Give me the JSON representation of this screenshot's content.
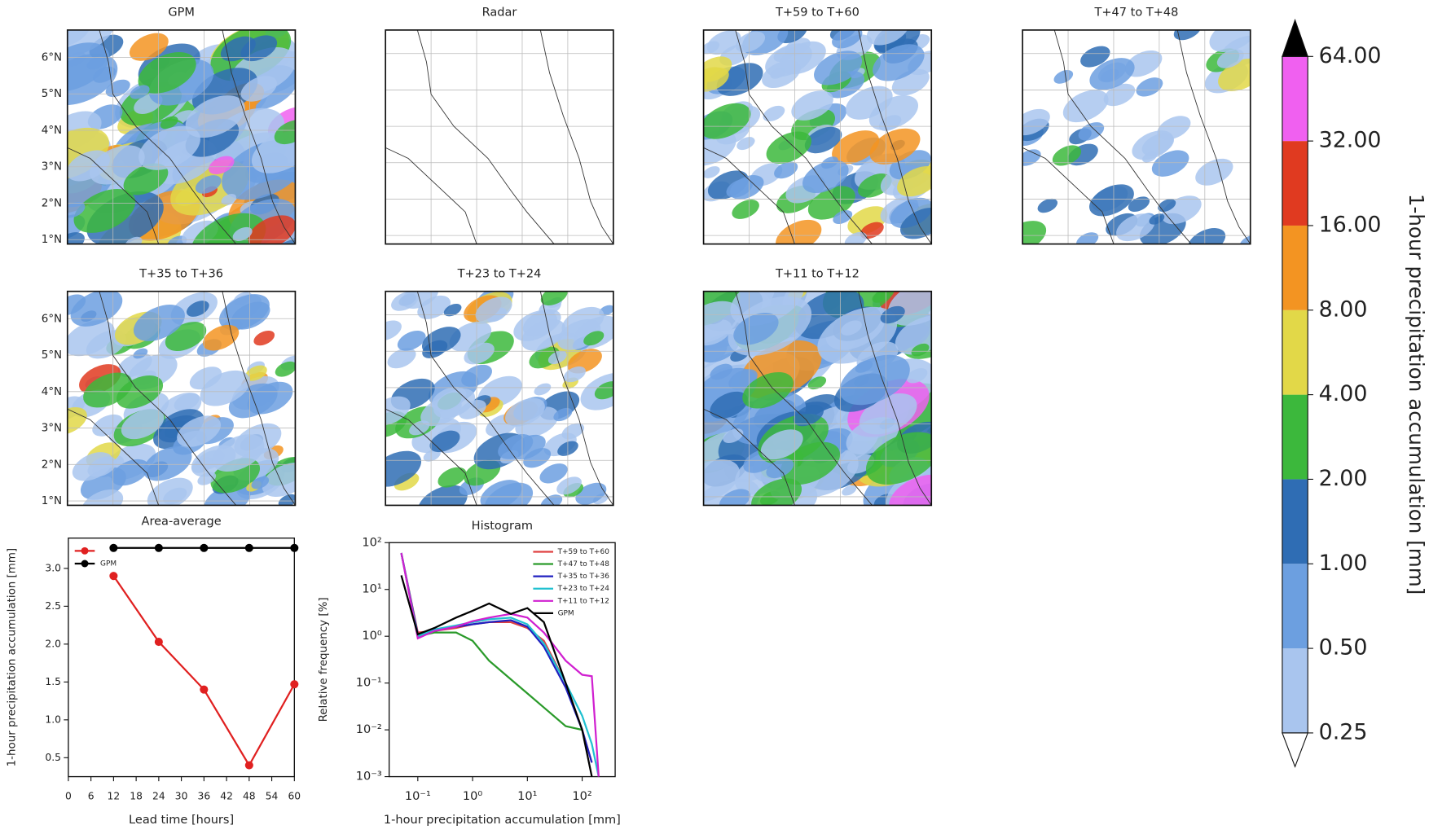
{
  "chart_data": [
    {
      "type": "map",
      "title": "GPM",
      "ylim": [
        0.88,
        6.75
      ],
      "yticks": [
        {
          "value": 1,
          "label": "1°N"
        },
        {
          "value": 2,
          "label": "2°N"
        },
        {
          "value": 3,
          "label": "3°N"
        },
        {
          "value": 4,
          "label": "4°N"
        },
        {
          "value": 5,
          "label": "5°N"
        },
        {
          "value": 6,
          "label": "6°N"
        }
      ]
    },
    {
      "type": "map",
      "title": "Radar"
    },
    {
      "type": "map",
      "title": "T+59 to T+60"
    },
    {
      "type": "map",
      "title": "T+47 to T+48"
    },
    {
      "type": "map",
      "title": "T+35 to T+36",
      "ylim": [
        0.88,
        6.75
      ],
      "yticks": [
        {
          "value": 1,
          "label": "1°N"
        },
        {
          "value": 2,
          "label": "2°N"
        },
        {
          "value": 3,
          "label": "3°N"
        },
        {
          "value": 4,
          "label": "4°N"
        },
        {
          "value": 5,
          "label": "5°N"
        },
        {
          "value": 6,
          "label": "6°N"
        }
      ]
    },
    {
      "type": "map",
      "title": "T+23 to T+24"
    },
    {
      "type": "map",
      "title": "T+11 to T+12"
    },
    {
      "type": "line",
      "title": "Area-average",
      "x_label": "Lead time [hours]",
      "y_label": "1-hour precipitation accumulation [mm]",
      "x": [
        12,
        24,
        36,
        48,
        60
      ],
      "series": [
        {
          "color": "#e02020",
          "values": [
            2.9,
            2.03,
            1.4,
            0.4,
            1.47
          ]
        },
        {
          "name": "GPM",
          "color": "#000000",
          "values": [
            3.27,
            3.27,
            3.27,
            3.27,
            3.27
          ]
        }
      ],
      "xlim": [
        0,
        60
      ],
      "xticks": [
        0,
        6,
        12,
        18,
        24,
        30,
        36,
        42,
        48,
        54,
        60
      ],
      "ylim": [
        0.25,
        3.4
      ],
      "yticks": [
        {
          "value": 0.5,
          "label": "0.5"
        },
        {
          "value": 1,
          "label": "1.0"
        },
        {
          "value": 1.5,
          "label": "1.5"
        },
        {
          "value": 2,
          "label": "2.0"
        },
        {
          "value": 2.5,
          "label": "2.5"
        },
        {
          "value": 3,
          "label": "3.0"
        }
      ]
    },
    {
      "type": "histogram-line",
      "title": "Histogram",
      "x_label": "1-hour precipitation accumulation [mm]",
      "y_label": "Relative frequency [%]",
      "log_x": true,
      "log_y": true,
      "x": [
        0.05,
        0.1,
        0.2,
        0.5,
        1,
        2,
        5,
        10,
        20,
        50,
        100,
        150,
        200
      ],
      "series": [
        {
          "name": "T+59 to T+60",
          "color": "#e04040",
          "values": [
            60,
            1.2,
            1.3,
            1.5,
            1.8,
            2,
            2,
            1.5,
            0.8,
            0.1,
            0.01,
            0.002,
            null
          ]
        },
        {
          "name": "T+47 to T+48",
          "color": "#2a9a2a",
          "values": [
            60,
            1.0,
            1.2,
            1.2,
            0.8,
            0.3,
            0.12,
            0.06,
            0.03,
            0.012,
            0.01,
            null,
            null
          ]
        },
        {
          "name": "T+35 to T+36",
          "color": "#2020c0",
          "values": [
            60,
            1.1,
            1.3,
            1.6,
            1.8,
            2,
            2.2,
            1.6,
            0.6,
            0.08,
            0.01,
            0.002,
            null
          ]
        },
        {
          "name": "T+23 to T+24",
          "color": "#20c0d0",
          "values": [
            60,
            1.0,
            1.4,
            1.7,
            2,
            2.3,
            2.5,
            1.8,
            0.7,
            0.1,
            0.02,
            0.005,
            0.001
          ]
        },
        {
          "name": "T+11 to T+12",
          "color": "#d020d0",
          "values": [
            60,
            0.9,
            1.3,
            1.6,
            2.1,
            2.5,
            3,
            2.5,
            1.2,
            0.3,
            0.15,
            0.14,
            0.001
          ]
        },
        {
          "name": "GPM",
          "color": "#000000",
          "values": [
            20,
            1.1,
            1.5,
            2.5,
            3.5,
            5,
            3,
            4,
            2,
            0.1,
            0.01,
            0.001,
            null
          ]
        }
      ],
      "xlim": [
        0.03,
        400
      ],
      "xticks": [
        {
          "value": 0.1,
          "label": "10⁻¹"
        },
        {
          "value": 1,
          "label": "10⁰"
        },
        {
          "value": 10,
          "label": "10¹"
        },
        {
          "value": 100,
          "label": "10²"
        }
      ],
      "ylim": [
        0.001,
        100
      ],
      "yticks": [
        {
          "value": 0.001,
          "label": "10⁻³"
        },
        {
          "value": 0.01,
          "label": "10⁻²"
        },
        {
          "value": 0.1,
          "label": "10⁻¹"
        },
        {
          "value": 1,
          "label": "10⁰"
        },
        {
          "value": 10,
          "label": "10¹"
        },
        {
          "value": 100,
          "label": "10²"
        }
      ]
    },
    {
      "type": "colorbar",
      "label": "1-hour precipitation accumulation [mm]",
      "levels": [
        0.25,
        {
          "value": 0.5,
          "label": "0.50"
        },
        {
          "value": 1,
          "label": "1.00"
        },
        {
          "value": 2,
          "label": "2.00"
        },
        {
          "value": 4,
          "label": "4.00"
        },
        {
          "value": 8,
          "label": "8.00"
        },
        {
          "value": 16,
          "label": "16.00"
        },
        {
          "value": 32,
          "label": "32.00"
        },
        {
          "value": 64,
          "label": "64.00"
        }
      ],
      "colors": [
        "#a9c5ee",
        "#6c9fe0",
        "#2f6db4",
        "#3cb83c",
        "#e2d848",
        "#f39422",
        "#e03a20",
        "#f060f0"
      ],
      "over_color": "#000000",
      "under_color": "#ffffff"
    }
  ]
}
